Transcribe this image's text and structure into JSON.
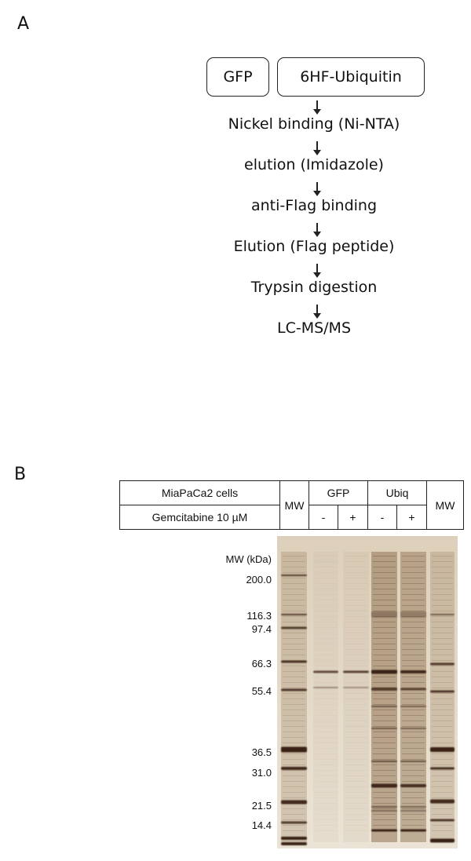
{
  "panel_a": {
    "label": "A",
    "boxes": [
      "GFP",
      "6HF-Ubiquitin"
    ],
    "steps": [
      "Nickel binding (Ni-NTA)",
      "elution (Imidazole)",
      "anti-Flag binding",
      "Elution (Flag peptide)",
      "Trypsin digestion",
      "LC-MS/MS"
    ]
  },
  "panel_b": {
    "label": "B",
    "table": {
      "row1_label": "MiaPaCa2 cells",
      "row2_label": "Gemcitabine 10 µM",
      "mw_left": "MW",
      "mw_right": "MW",
      "groups": [
        "GFP",
        "Ubiq"
      ],
      "treatments": [
        "-",
        "+",
        "-",
        "+"
      ]
    },
    "mw_axis_title": "MW (kDa)",
    "mw_markers": [
      "200.0",
      "116.3",
      "97.4",
      "66.3",
      "55.4",
      "36.5",
      "31.0",
      "21.5",
      "14.4"
    ],
    "gel_colors": {
      "background": "#e6dccb",
      "band": "#3a2414"
    }
  }
}
